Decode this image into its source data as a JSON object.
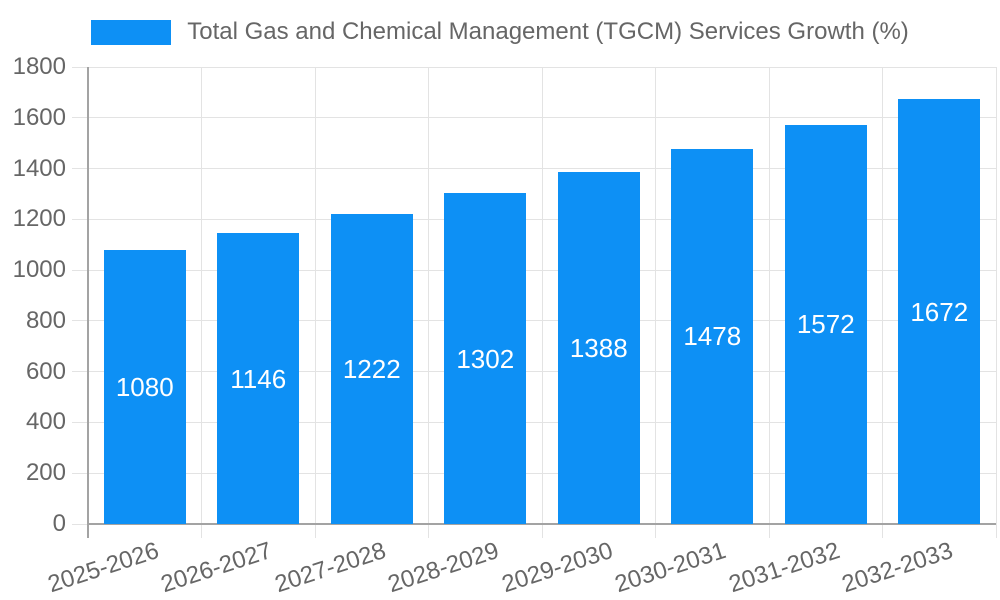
{
  "chart_data": {
    "type": "bar",
    "title": "",
    "categories": [
      "2025-2026",
      "2026-2027",
      "2027-2028",
      "2028-2029",
      "2029-2030",
      "2030-2031",
      "2031-2032",
      "2032-2033"
    ],
    "values": [
      1080,
      1146,
      1222,
      1302,
      1388,
      1478,
      1572,
      1672
    ],
    "series_name": "Total Gas and Chemical Management (TGCM) Services Growth (%)",
    "xlabel": "",
    "ylabel": "",
    "ylim": [
      0,
      1800
    ],
    "ytick_step": 200,
    "ytick_labels": [
      "0",
      "200",
      "400",
      "600",
      "800",
      "1000",
      "1200",
      "1400",
      "1600",
      "1800"
    ],
    "grid": true,
    "legend_position": "top-center",
    "bar_color": "#0d90f5",
    "value_label_color": "#ffffff",
    "tick_label_color": "#666666",
    "grid_color": "#e3e3e3",
    "axis_color": "#a3a3a3",
    "x_label_rotation_deg": -18
  }
}
